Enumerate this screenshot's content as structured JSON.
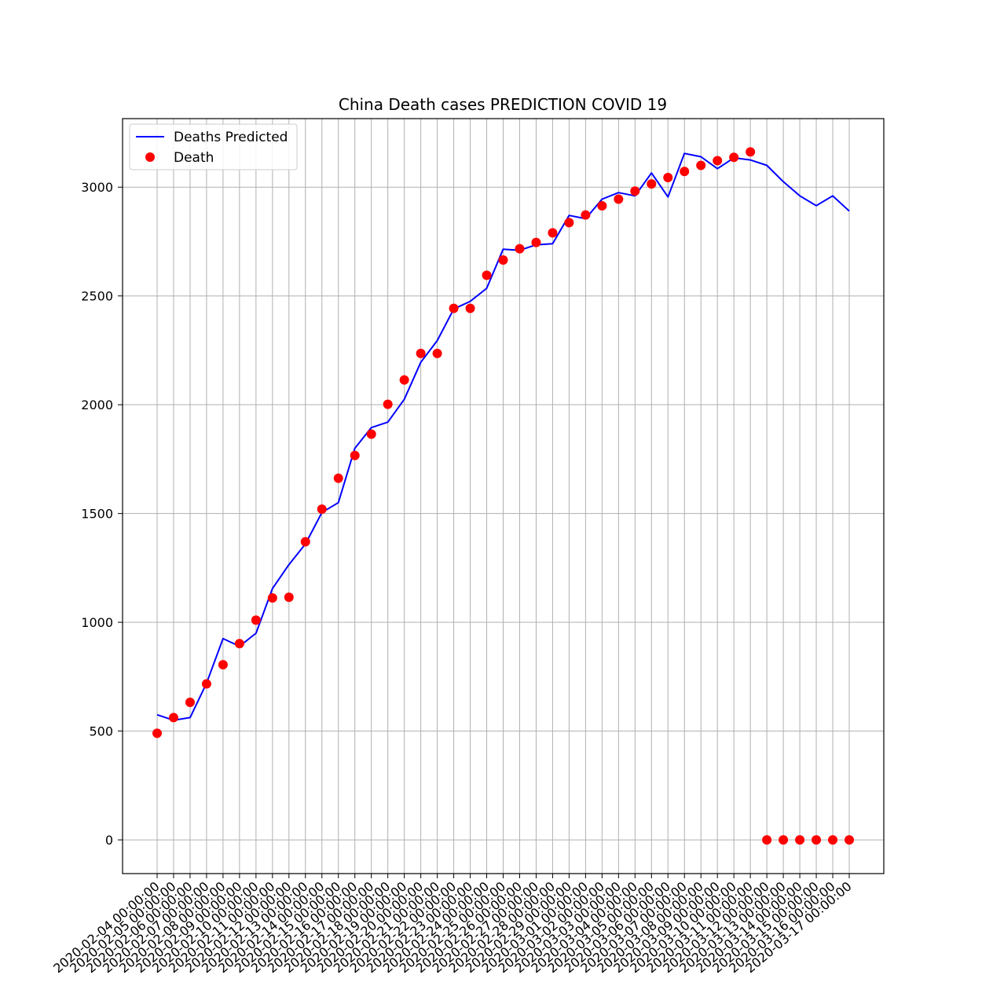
{
  "chart_data": {
    "type": "line",
    "title": "China Death cases PREDICTION COVID 19",
    "xlabel": "",
    "ylabel": "",
    "ylim": [
      -155,
      3315
    ],
    "yticks": [
      0,
      500,
      1000,
      1500,
      2000,
      2500,
      3000
    ],
    "grid": true,
    "legend_position": "top-left",
    "categories": [
      "2020-02-04 00:00:00",
      "2020-02-05 00:00:00",
      "2020-02-06 00:00:00",
      "2020-02-07 00:00:00",
      "2020-02-08 00:00:00",
      "2020-02-09 00:00:00",
      "2020-02-10 00:00:00",
      "2020-02-11 00:00:00",
      "2020-02-12 00:00:00",
      "2020-02-13 00:00:00",
      "2020-02-14 00:00:00",
      "2020-02-15 00:00:00",
      "2020-02-16 00:00:00",
      "2020-02-17 00:00:00",
      "2020-02-18 00:00:00",
      "2020-02-19 00:00:00",
      "2020-02-20 00:00:00",
      "2020-02-21 00:00:00",
      "2020-02-22 00:00:00",
      "2020-02-23 00:00:00",
      "2020-02-24 00:00:00",
      "2020-02-25 00:00:00",
      "2020-02-26 00:00:00",
      "2020-02-27 00:00:00",
      "2020-02-28 00:00:00",
      "2020-02-29 00:00:00",
      "2020-03-01 00:00:00",
      "2020-03-02 00:00:00",
      "2020-03-03 00:00:00",
      "2020-03-04 00:00:00",
      "2020-03-05 00:00:00",
      "2020-03-06 00:00:00",
      "2020-03-07 00:00:00",
      "2020-03-08 00:00:00",
      "2020-03-09 00:00:00",
      "2020-03-10 00:00:00",
      "2020-03-11 00:00:00",
      "2020-03-12 00:00:00",
      "2020-03-13 00:00:00",
      "2020-03-14 00:00:00",
      "2020-03-15 00:00:00",
      "2020-03-16 00:00:00",
      "2020-03-17 00:00:00"
    ],
    "series": [
      {
        "name": "Deaths Predicted",
        "kind": "line",
        "color": "#0000ff",
        "values": [
          575,
          550,
          562,
          720,
          925,
          890,
          950,
          1155,
          1265,
          1360,
          1505,
          1550,
          1800,
          1895,
          1920,
          2025,
          2195,
          2295,
          2440,
          2475,
          2535,
          2715,
          2710,
          2735,
          2740,
          2870,
          2855,
          2945,
          2975,
          2960,
          3065,
          2955,
          3155,
          3140,
          3085,
          3135,
          3125,
          3100,
          3025,
          2960,
          2915,
          2960,
          2890
        ]
      },
      {
        "name": "Death",
        "kind": "scatter",
        "color": "#ff0000",
        "values": [
          490,
          562,
          632,
          717,
          805,
          902,
          1010,
          1112,
          1115,
          1370,
          1520,
          1662,
          1767,
          1865,
          2002,
          2114,
          2236,
          2236,
          2443,
          2443,
          2595,
          2665,
          2717,
          2746,
          2790,
          2837,
          2872,
          2914,
          2945,
          2982,
          3015,
          3044,
          3072,
          3100,
          3122,
          3137,
          3162,
          0,
          0,
          0,
          0,
          0,
          0
        ]
      }
    ]
  }
}
